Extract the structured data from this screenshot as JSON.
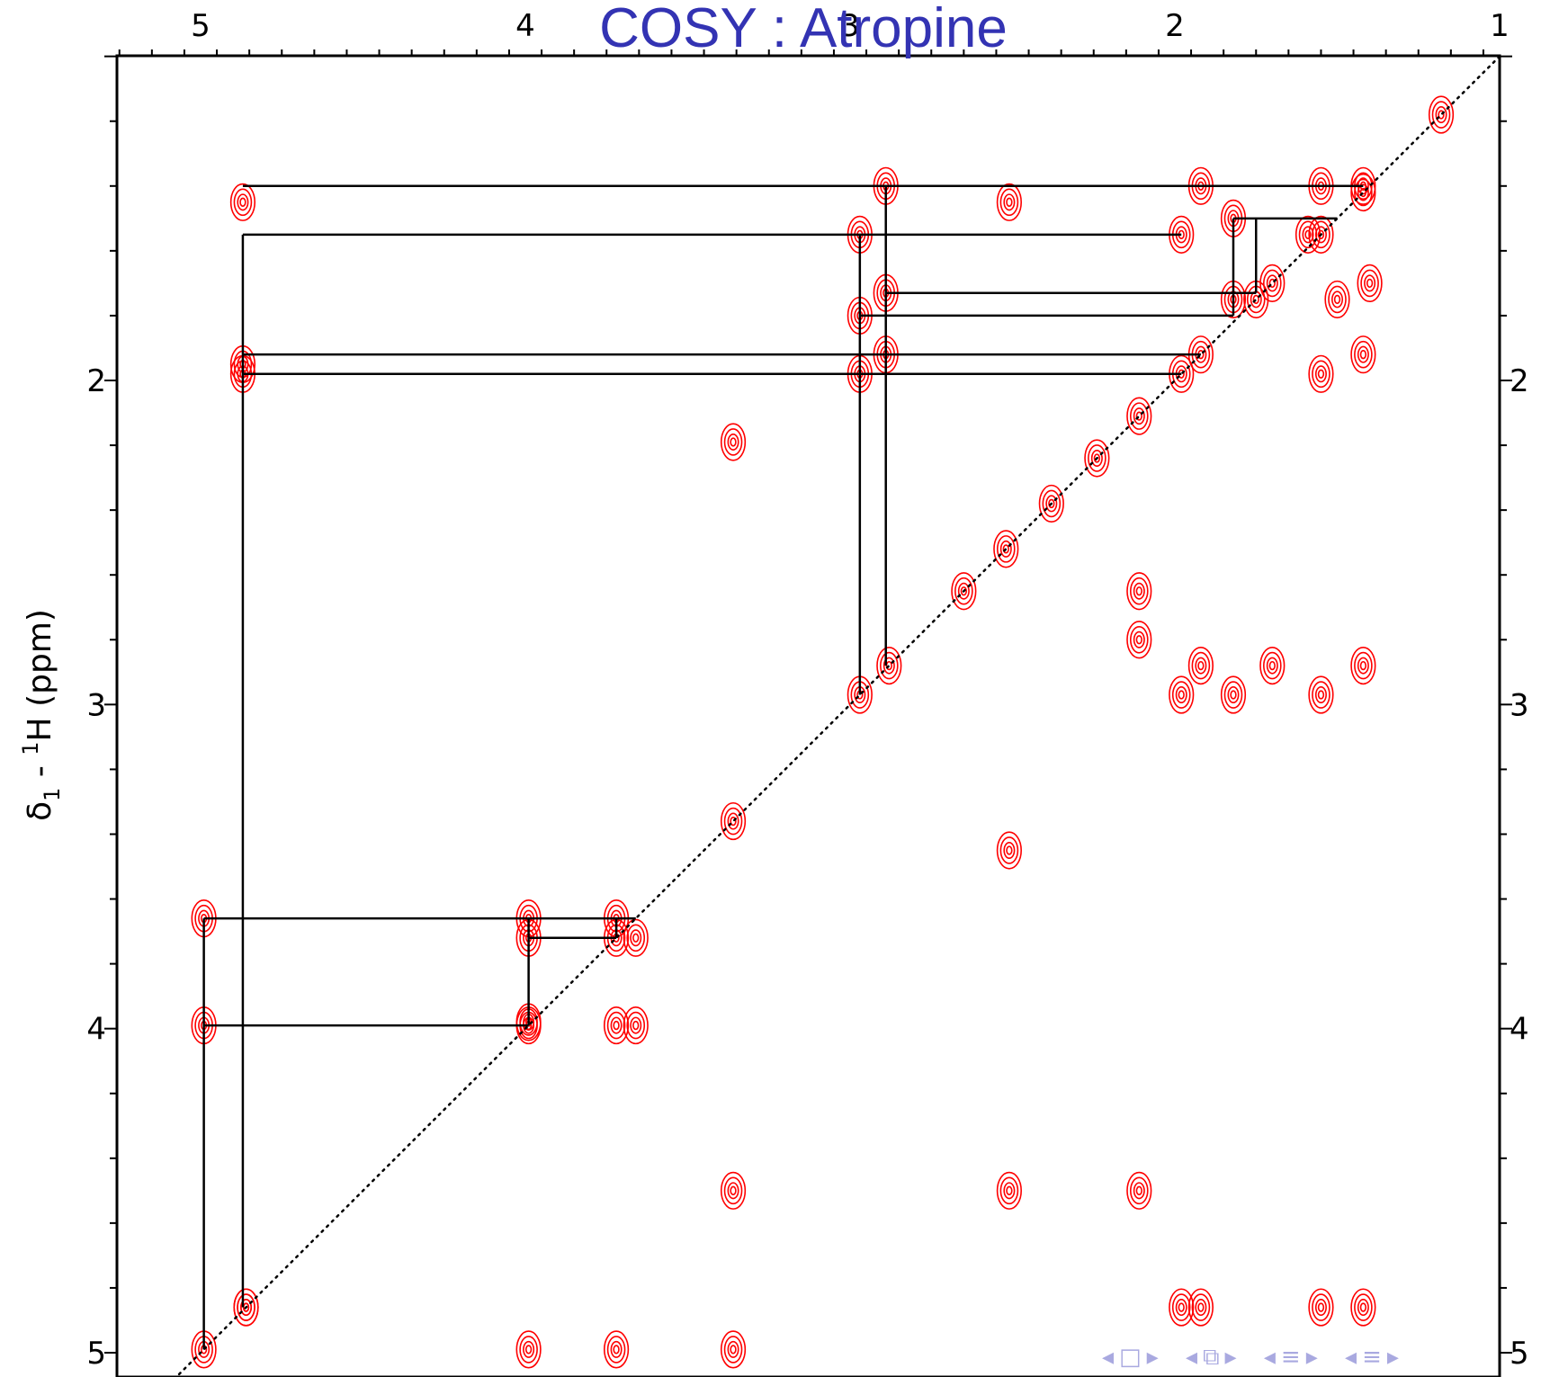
{
  "chart_data": {
    "type": "scatter",
    "title": "COSY : Atropine",
    "ylabel_base": "δ",
    "ylabel_sub": "1",
    "ylabel_dash": " - ",
    "ylabel_sup": "1",
    "ylabel_rest": "H  (ppm)",
    "xlabel": "",
    "xlim": [
      5.25,
      1.0
    ],
    "ylim": [
      1.0,
      5.0
    ],
    "x_ticks": [
      5,
      4,
      3,
      2,
      1
    ],
    "y_ticks": [
      2,
      3,
      4,
      5
    ],
    "diagonal": true,
    "cross_peak_color": "#ff0000",
    "diagonal_peaks": [
      {
        "ppm": 1.18
      },
      {
        "ppm": 1.42
      },
      {
        "ppm": 1.55
      },
      {
        "ppm": 1.7
      },
      {
        "ppm": 1.75
      },
      {
        "ppm": 1.92
      },
      {
        "ppm": 1.98
      },
      {
        "ppm": 2.11
      },
      {
        "ppm": 2.24
      },
      {
        "ppm": 2.38
      },
      {
        "ppm": 2.52
      },
      {
        "ppm": 2.65
      },
      {
        "ppm": 2.88
      },
      {
        "ppm": 2.97
      },
      {
        "ppm": 3.36
      },
      {
        "ppm": 3.72
      },
      {
        "ppm": 3.99
      },
      {
        "ppm": 4.86
      },
      {
        "ppm": 4.99
      }
    ],
    "cross_peaks": [
      {
        "x": 4.87,
        "y": 1.45
      },
      {
        "x": 4.87,
        "y": 1.95
      },
      {
        "x": 4.87,
        "y": 1.98
      },
      {
        "x": 2.89,
        "y": 1.4
      },
      {
        "x": 2.97,
        "y": 1.55
      },
      {
        "x": 2.89,
        "y": 1.73
      },
      {
        "x": 2.97,
        "y": 1.8
      },
      {
        "x": 2.97,
        "y": 1.98
      },
      {
        "x": 2.89,
        "y": 1.92
      },
      {
        "x": 2.51,
        "y": 1.45
      },
      {
        "x": 1.92,
        "y": 1.4
      },
      {
        "x": 1.98,
        "y": 1.55
      },
      {
        "x": 1.82,
        "y": 1.5
      },
      {
        "x": 1.82,
        "y": 1.75
      },
      {
        "x": 1.55,
        "y": 1.4
      },
      {
        "x": 1.55,
        "y": 1.98
      },
      {
        "x": 1.42,
        "y": 1.4
      },
      {
        "x": 1.42,
        "y": 1.92
      },
      {
        "x": 1.5,
        "y": 1.75
      },
      {
        "x": 1.4,
        "y": 1.7
      },
      {
        "x": 1.59,
        "y": 1.55
      },
      {
        "x": 2.11,
        "y": 2.65
      },
      {
        "x": 2.11,
        "y": 2.8
      },
      {
        "x": 1.98,
        "y": 2.97
      },
      {
        "x": 1.92,
        "y": 2.88
      },
      {
        "x": 1.82,
        "y": 2.97
      },
      {
        "x": 1.7,
        "y": 2.88
      },
      {
        "x": 1.55,
        "y": 2.97
      },
      {
        "x": 1.42,
        "y": 2.88
      },
      {
        "x": 2.51,
        "y": 3.45
      },
      {
        "x": 3.36,
        "y": 2.19
      },
      {
        "x": 3.36,
        "y": 4.5
      },
      {
        "x": 4.99,
        "y": 3.66
      },
      {
        "x": 4.99,
        "y": 3.99
      },
      {
        "x": 3.99,
        "y": 3.66
      },
      {
        "x": 3.99,
        "y": 3.72
      },
      {
        "x": 3.72,
        "y": 3.66
      },
      {
        "x": 3.72,
        "y": 3.99
      },
      {
        "x": 3.66,
        "y": 3.72
      },
      {
        "x": 3.66,
        "y": 3.99
      },
      {
        "x": 3.99,
        "y": 4.99
      },
      {
        "x": 3.72,
        "y": 4.99
      },
      {
        "x": 3.36,
        "y": 4.99
      },
      {
        "x": 2.51,
        "y": 4.5
      },
      {
        "x": 2.11,
        "y": 4.5
      },
      {
        "x": 4.86,
        "y": 4.86
      },
      {
        "x": 1.98,
        "y": 4.86
      },
      {
        "x": 1.92,
        "y": 4.86
      },
      {
        "x": 1.55,
        "y": 4.86
      },
      {
        "x": 1.42,
        "y": 4.86
      },
      {
        "x": 3.99,
        "y": 3.98
      }
    ],
    "connectivity_lines": [
      [
        [
          4.87,
          1.4
        ],
        [
          1.42,
          1.4
        ]
      ],
      [
        [
          4.87,
          1.55
        ],
        [
          1.98,
          1.55
        ]
      ],
      [
        [
          4.87,
          1.92
        ],
        [
          1.92,
          1.92
        ]
      ],
      [
        [
          4.87,
          1.98
        ],
        [
          1.98,
          1.98
        ]
      ],
      [
        [
          2.97,
          1.55
        ],
        [
          2.97,
          2.97
        ]
      ],
      [
        [
          2.89,
          1.4
        ],
        [
          2.89,
          2.88
        ]
      ],
      [
        [
          2.89,
          1.73
        ],
        [
          1.75,
          1.73
        ]
      ],
      [
        [
          2.97,
          1.8
        ],
        [
          1.82,
          1.8
        ]
      ],
      [
        [
          1.82,
          1.5
        ],
        [
          1.5,
          1.5
        ]
      ],
      [
        [
          1.82,
          1.5
        ],
        [
          1.82,
          1.8
        ]
      ],
      [
        [
          1.75,
          1.5
        ],
        [
          1.75,
          1.73
        ]
      ],
      [
        [
          4.87,
          1.55
        ],
        [
          4.87,
          4.86
        ]
      ],
      [
        [
          4.99,
          3.66
        ],
        [
          3.66,
          3.66
        ]
      ],
      [
        [
          4.99,
          3.99
        ],
        [
          3.99,
          3.99
        ]
      ],
      [
        [
          4.99,
          3.66
        ],
        [
          4.99,
          4.99
        ]
      ],
      [
        [
          3.99,
          3.66
        ],
        [
          3.99,
          3.99
        ]
      ],
      [
        [
          3.99,
          3.72
        ],
        [
          3.72,
          3.72
        ]
      ],
      [
        [
          3.72,
          3.66
        ],
        [
          3.72,
          3.72
        ]
      ]
    ]
  }
}
